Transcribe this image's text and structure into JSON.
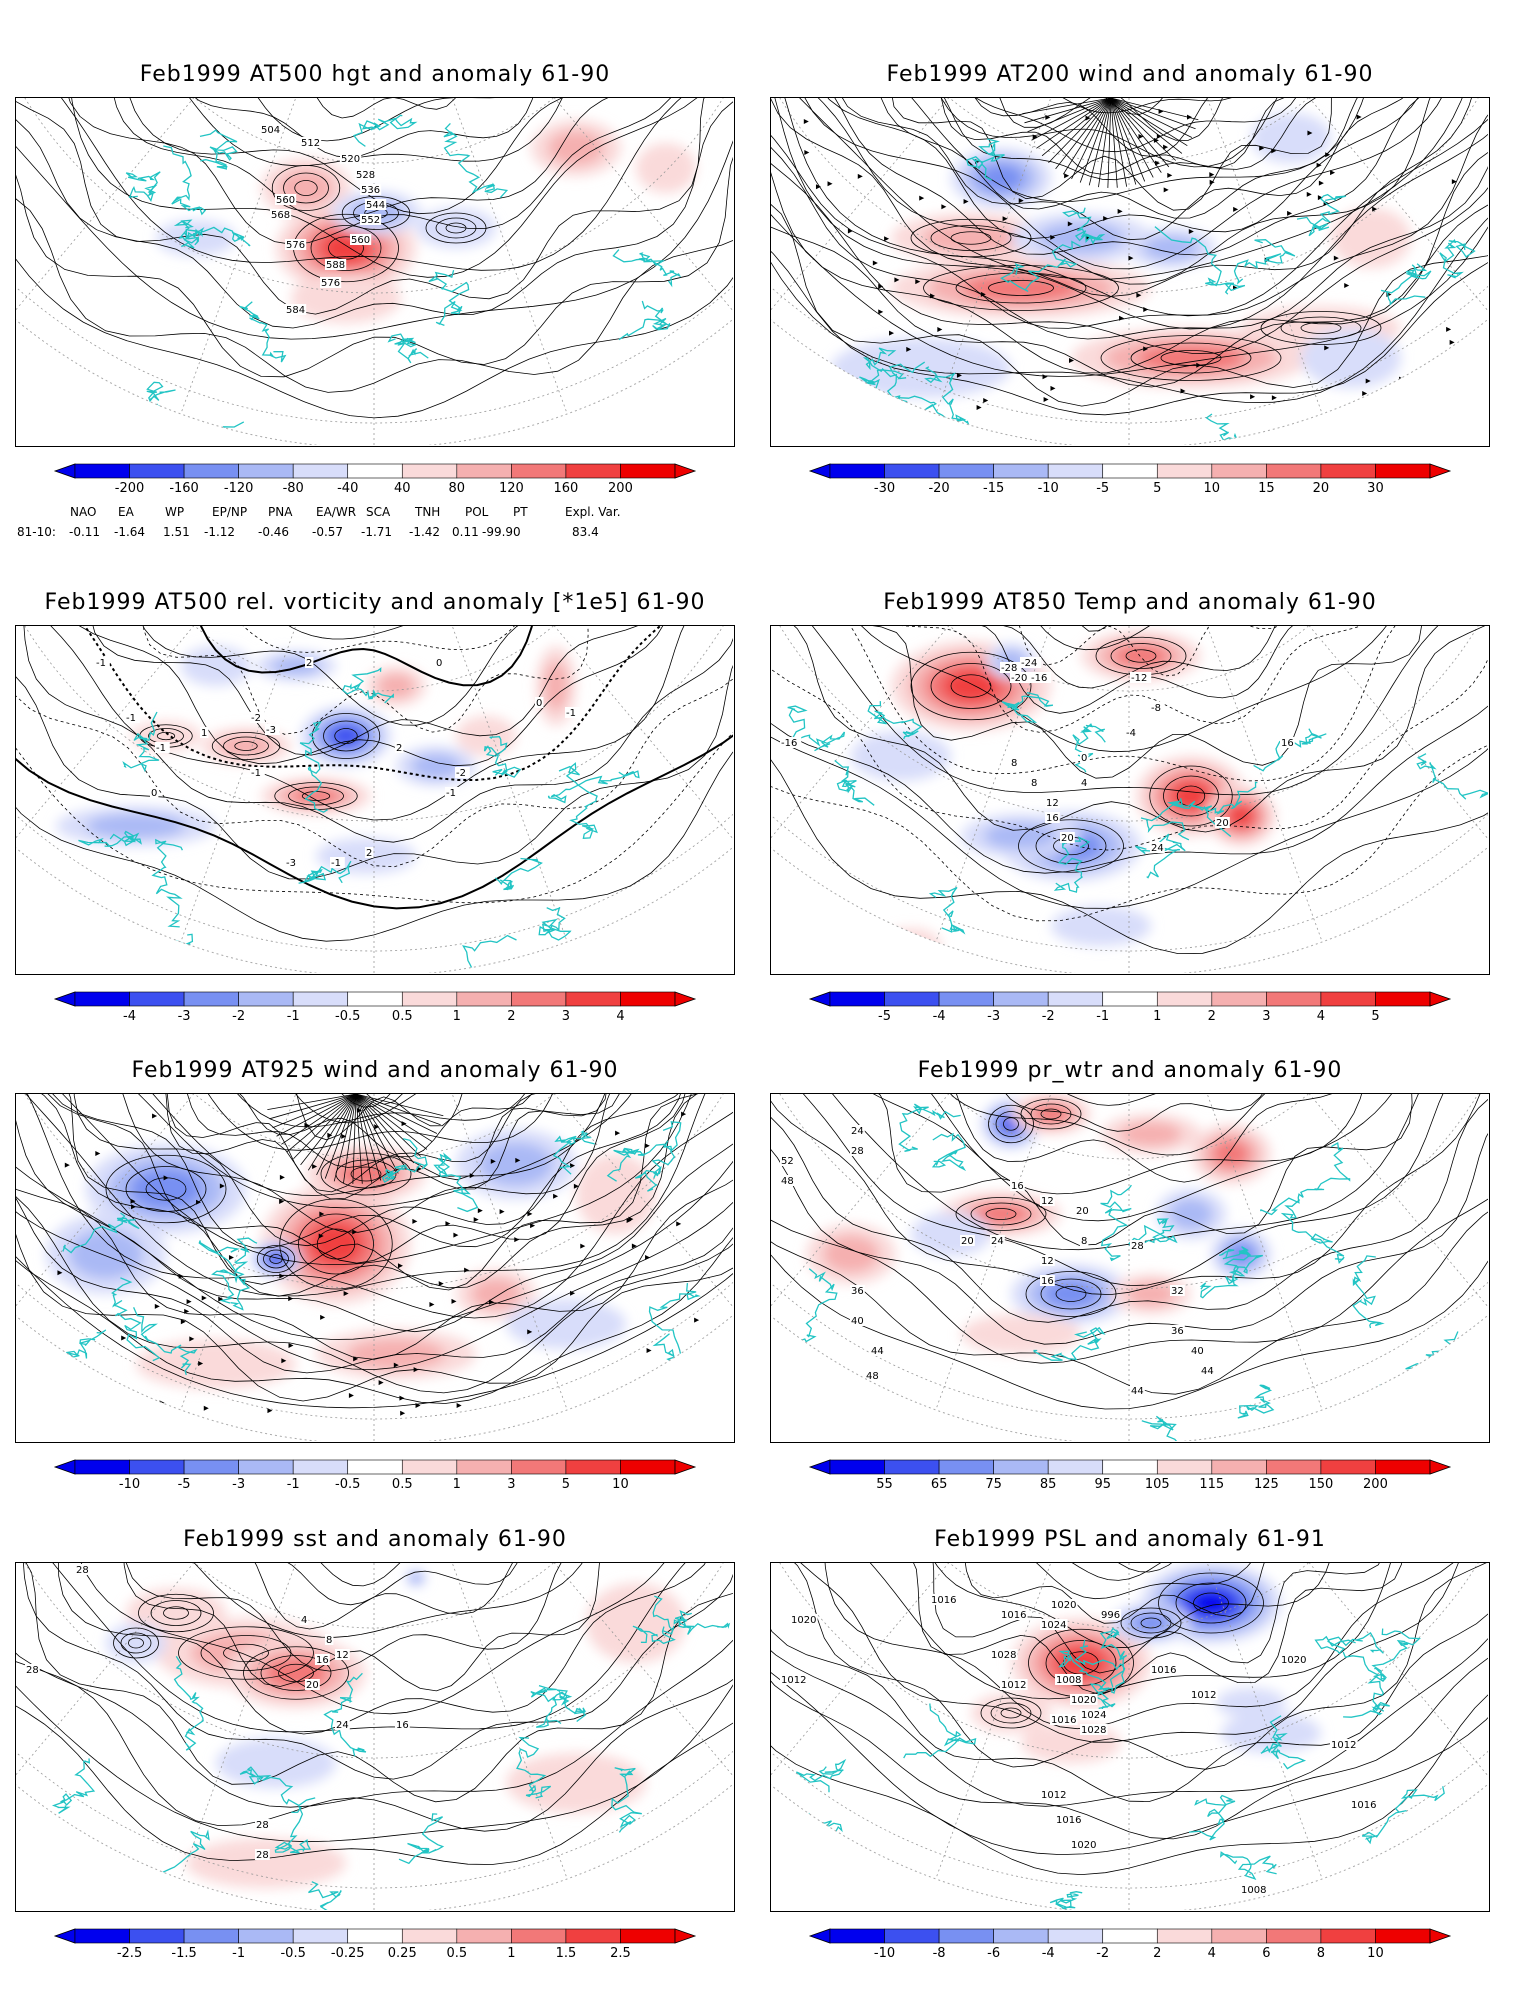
{
  "panels": [
    {
      "title": "Feb1999 AT500 hgt and anomaly 61-90",
      "colorbar": {
        "labels": [
          "-200",
          "-160",
          "-120",
          "-80",
          "-40",
          "40",
          "80",
          "120",
          "160",
          "200"
        ]
      },
      "contour_labels": [
        "504",
        "512",
        "520",
        "528",
        "536",
        "544",
        "552",
        "560",
        "560",
        "568",
        "576",
        "576",
        "584",
        "588"
      ],
      "indices": {
        "headers": [
          "NAO",
          "EA",
          "WP",
          "EP/NP",
          "PNA",
          "EA/WR",
          "SCA",
          "TNH",
          "POL",
          "PT",
          "Expl. Var."
        ],
        "row_label": "81-10:",
        "values": [
          "-0.11",
          "-1.64",
          "1.51",
          "-1.12",
          "-0.46",
          "-0.57",
          "-1.71",
          "-1.42",
          "0.11",
          "-99.90",
          "83.4"
        ]
      }
    },
    {
      "title": "Feb1999 AT200 wind and anomaly 61-90",
      "colorbar": {
        "labels": [
          "-30",
          "-20",
          "-15",
          "-10",
          "-5",
          "5",
          "10",
          "15",
          "20",
          "30"
        ]
      },
      "contour_labels": []
    },
    {
      "title": "Feb1999 AT500 rel. vorticity and anomaly [*1e5] 61-90",
      "colorbar": {
        "labels": [
          "-4",
          "-3",
          "-2",
          "-1",
          "-0.5",
          "0.5",
          "1",
          "2",
          "3",
          "4"
        ]
      },
      "contour_labels": [
        "-1",
        "-1",
        "-1",
        "1",
        "-1",
        "2",
        "-2",
        "-3",
        "0",
        "0",
        "0",
        "2",
        "-1",
        "-2",
        "-1",
        "2",
        "-3",
        "-1"
      ]
    },
    {
      "title": "Feb1999 AT850 Temp and anomaly 61-90",
      "colorbar": {
        "labels": [
          "-5",
          "-4",
          "-3",
          "-2",
          "-1",
          "1",
          "2",
          "3",
          "4",
          "5"
        ]
      },
      "contour_labels": [
        "-28",
        "-24",
        "-20",
        "-16",
        "-12",
        "-8",
        "-4",
        "0",
        "4",
        "8",
        "12",
        "16",
        "20",
        "24",
        "20",
        "16",
        "-16",
        "8"
      ]
    },
    {
      "title": "Feb1999 AT925 wind and anomaly 61-90",
      "colorbar": {
        "labels": [
          "-10",
          "-5",
          "-3",
          "-1",
          "-0.5",
          "0.5",
          "1",
          "3",
          "5",
          "10"
        ]
      },
      "contour_labels": []
    },
    {
      "title": "Feb1999 pr_wtr and anomaly 61-90",
      "colorbar": {
        "labels": [
          "55",
          "65",
          "75",
          "85",
          "95",
          "105",
          "115",
          "125",
          "150",
          "200"
        ]
      },
      "contour_labels": [
        "24",
        "28",
        "52",
        "48",
        "36",
        "40",
        "44",
        "48",
        "20",
        "24",
        "16",
        "12",
        "8",
        "12",
        "16",
        "20",
        "28",
        "32",
        "36",
        "40",
        "44",
        "44"
      ]
    },
    {
      "title": "Feb1999 sst and anomaly 61-90",
      "colorbar": {
        "labels": [
          "-2.5",
          "-1.5",
          "-1",
          "-0.5",
          "-0.25",
          "0.25",
          "0.5",
          "1",
          "1.5",
          "2.5"
        ]
      },
      "contour_labels": [
        "28",
        "28",
        "4",
        "8",
        "12",
        "16",
        "20",
        "24",
        "28",
        "28",
        "16"
      ]
    },
    {
      "title": "Feb1999 PSL and anomaly 61-91",
      "colorbar": {
        "labels": [
          "-10",
          "-8",
          "-6",
          "-4",
          "-2",
          "2",
          "4",
          "6",
          "8",
          "10"
        ]
      },
      "contour_labels": [
        "1012",
        "1020",
        "1016",
        "1016",
        "1020",
        "1024",
        "1028",
        "1016",
        "996",
        "1008",
        "1012",
        "1020",
        "1024",
        "1028",
        "1016",
        "1020",
        "1012",
        "1012",
        "1016",
        "1012",
        "1016",
        "1020",
        "1008"
      ]
    }
  ],
  "colors": {
    "coast": "#22c4c4",
    "blue_scale": [
      "#0000ee",
      "#3c50f0",
      "#7890f2",
      "#aab9f5",
      "#d8ddfa"
    ],
    "red_scale": [
      "#fadada",
      "#f5b0b0",
      "#f27878",
      "#f04040",
      "#ee0000"
    ]
  }
}
